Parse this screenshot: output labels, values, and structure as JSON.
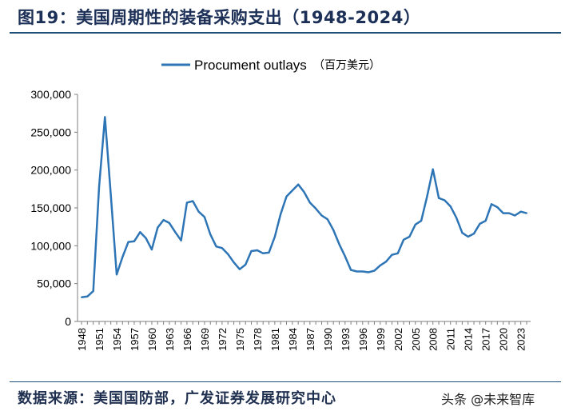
{
  "header": {
    "title": "图19：美国周期性的装备采购支出（1948-2024）"
  },
  "footer": {
    "source": "数据来源：美国国防部，广发证券发展研究中心",
    "watermark": "头条 @未来智库"
  },
  "colors": {
    "line": "#2e75b6",
    "axis": "#7f7f7f",
    "title": "#1b2f57"
  },
  "chart_data": {
    "type": "line",
    "title": "",
    "xlabel": "",
    "ylabel": "",
    "legend": {
      "name": "Procument outlays",
      "unit": "（百万美元）",
      "placement": "top-center"
    },
    "ylim": [
      0,
      300000
    ],
    "yticks": [
      0,
      50000,
      100000,
      150000,
      200000,
      250000,
      300000
    ],
    "ytick_labels": [
      "0",
      "50,000",
      "100,000",
      "150,000",
      "200,000",
      "250,000",
      "300,000"
    ],
    "xtick_labels": [
      "1948",
      "1951",
      "1954",
      "1957",
      "1960",
      "1963",
      "1966",
      "1969",
      "1972",
      "1975",
      "1978",
      "1981",
      "1984",
      "1987",
      "1990",
      "1993",
      "1996",
      "1999",
      "2002",
      "2005",
      "2008",
      "2011",
      "2014",
      "2017",
      "2020",
      "2023"
    ],
    "grid": false,
    "series": [
      {
        "name": "Procument outlays",
        "x": [
          1948,
          1949,
          1950,
          1951,
          1952,
          1953,
          1954,
          1955,
          1956,
          1957,
          1958,
          1959,
          1960,
          1961,
          1962,
          1963,
          1964,
          1965,
          1966,
          1967,
          1968,
          1969,
          1970,
          1971,
          1972,
          1973,
          1974,
          1975,
          1976,
          1977,
          1978,
          1979,
          1980,
          1981,
          1982,
          1983,
          1984,
          1985,
          1986,
          1987,
          1988,
          1989,
          1990,
          1991,
          1992,
          1993,
          1994,
          1995,
          1996,
          1997,
          1998,
          1999,
          2000,
          2001,
          2002,
          2003,
          2004,
          2005,
          2006,
          2007,
          2008,
          2009,
          2010,
          2011,
          2012,
          2013,
          2014,
          2015,
          2016,
          2017,
          2018,
          2019,
          2020,
          2021,
          2022,
          2023,
          2024
        ],
        "values": [
          32000,
          33000,
          40000,
          178000,
          270000,
          168000,
          62000,
          85000,
          105000,
          106000,
          118000,
          110000,
          95000,
          124000,
          134000,
          130000,
          118000,
          107000,
          157000,
          159000,
          145000,
          138000,
          115000,
          99000,
          97000,
          89000,
          78000,
          69000,
          75000,
          93000,
          94000,
          90000,
          91000,
          112000,
          142000,
          165000,
          173000,
          181000,
          171000,
          157000,
          149000,
          140000,
          135000,
          121000,
          102000,
          86000,
          68000,
          66000,
          66000,
          65000,
          67000,
          74000,
          79000,
          88000,
          90000,
          108000,
          112000,
          128000,
          133000,
          165000,
          201000,
          163000,
          160000,
          152000,
          137000,
          117000,
          112000,
          116000,
          129000,
          133000,
          155000,
          151000,
          143000,
          143000,
          140000,
          145000,
          143000
        ]
      }
    ]
  }
}
